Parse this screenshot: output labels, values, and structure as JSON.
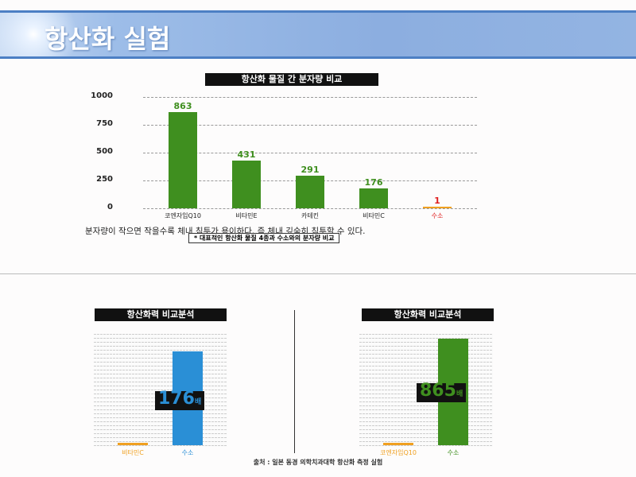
{
  "header": {
    "title": "항산화 실험"
  },
  "colors": {
    "green": "#3f8f1f",
    "blue": "#2a8fd6",
    "orange": "#f0a020",
    "red": "#e02020"
  },
  "chart_data": [
    {
      "type": "bar",
      "title": "항산화 물질 간 분자량 비교",
      "categories": [
        "코엔자임Q10",
        "비타민E",
        "카테킨",
        "비타민C",
        "수소"
      ],
      "values": [
        863,
        431,
        291,
        176,
        1
      ],
      "yticks": [
        0,
        250,
        500,
        750,
        1000
      ],
      "ylim": [
        0,
        1000
      ],
      "xlabel": "",
      "ylabel": "",
      "grid": true
    },
    {
      "type": "bar",
      "title": "항산화력 비교분석",
      "categories": [
        "비타민C",
        "수소"
      ],
      "values": [
        1,
        176
      ],
      "annotation": "176",
      "annotation_unit": "배"
    },
    {
      "type": "bar",
      "title": "항산화력 비교분석",
      "categories": [
        "코엔자임Q10",
        "수소"
      ],
      "values": [
        1,
        865
      ],
      "annotation": "865",
      "annotation_unit": "배"
    }
  ],
  "sentence": "분자량이 작으면 작을수록 체내 침투가 용이하다. 즉 체내 깊숙히 침투할 수 있다.",
  "note": "* 대표적인 항산화 물질 4종과 수소와의 분자량 비교",
  "source": "출처 : 일본 동경 의학치과대학 항산화 측정 실험"
}
